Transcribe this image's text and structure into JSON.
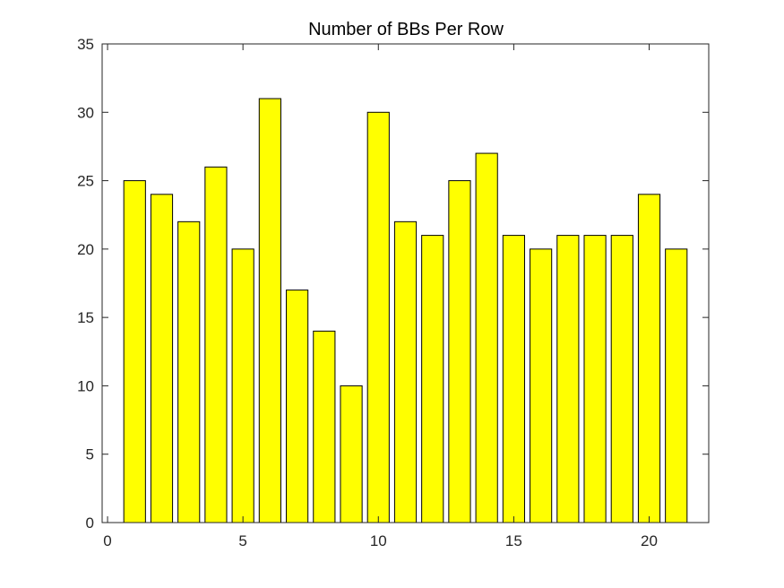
{
  "chart_data": {
    "type": "bar",
    "title": "Number of BBs Per Row",
    "xlabel": "",
    "ylabel": "",
    "x": [
      1,
      2,
      3,
      4,
      5,
      6,
      7,
      8,
      9,
      10,
      11,
      12,
      13,
      14,
      15,
      16,
      17,
      18,
      19,
      20,
      21
    ],
    "values": [
      25,
      24,
      22,
      26,
      20,
      31,
      17,
      14,
      10,
      30,
      22,
      21,
      25,
      27,
      21,
      20,
      21,
      21,
      21,
      24,
      20
    ],
    "xlim": [
      -0.2,
      22.2
    ],
    "ylim": [
      0,
      35
    ],
    "xticks": [
      0,
      5,
      10,
      15,
      20
    ],
    "yticks": [
      0,
      5,
      10,
      15,
      20,
      25,
      30,
      35
    ],
    "bar_color": "#ffff00",
    "edge_color": "#000000",
    "grid": false
  }
}
